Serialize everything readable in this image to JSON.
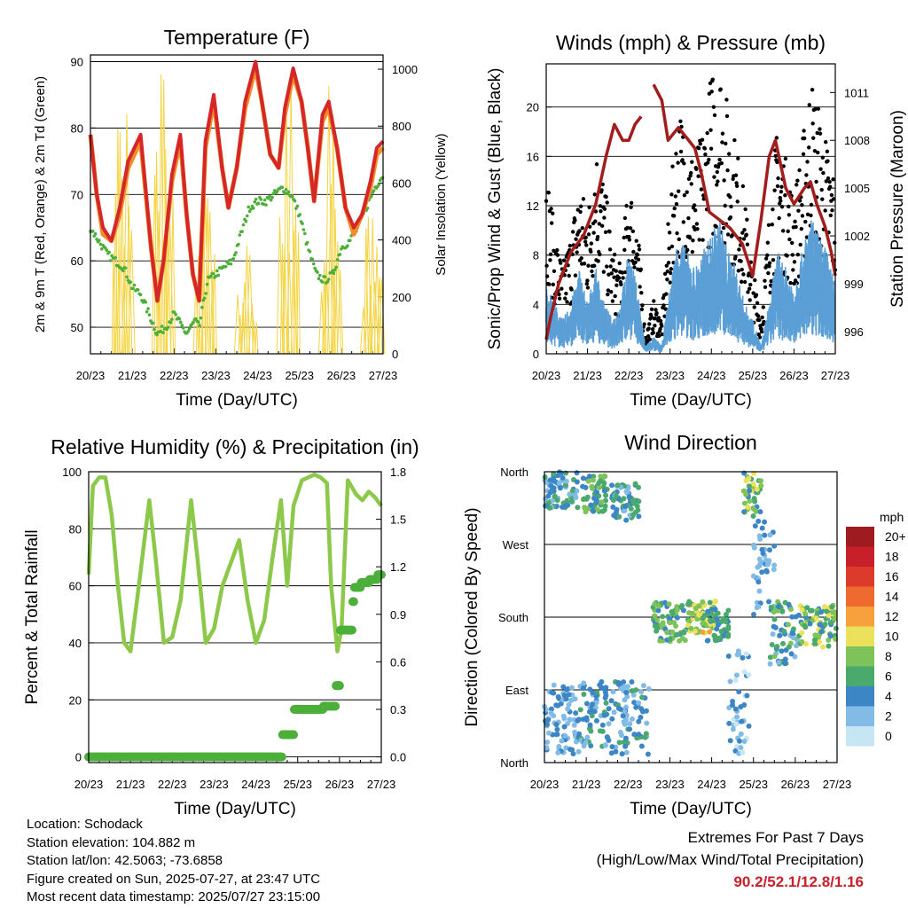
{
  "colors": {
    "temp_red": "#d62728",
    "temp_orange": "#f28c28",
    "dew_green": "#4caf3a",
    "solar_yellow": "#f5d442",
    "wind_blue": "#5b9fd6",
    "gust_black": "#000000",
    "pressure_maroon": "#a31d1d",
    "rh_green": "#8cc94a",
    "precip_green": "#4caf3a",
    "extremes_red": "#c8202a"
  },
  "x_tick_labels": [
    "20/23",
    "21/23",
    "22/23",
    "23/23",
    "24/23",
    "25/23",
    "26/23",
    "27/23"
  ],
  "chart_data": [
    {
      "id": "temperature",
      "type": "line",
      "title": "Temperature (F)",
      "xlabel": "Time (Day/UTC)",
      "ylabel": "2m & 9m T (Red, Orange) & 2m Td (Green)",
      "y2label": "Solar Insolation (Yellow)",
      "ylim": [
        46,
        91
      ],
      "y2lim": [
        0,
        1050
      ],
      "yticks": [
        50,
        60,
        70,
        80,
        90
      ],
      "y2ticks": [
        0,
        200,
        400,
        600,
        800,
        1000
      ],
      "xlim": [
        0,
        7
      ],
      "series": [
        {
          "name": "2m T",
          "color": "#d62728",
          "axis": "left",
          "x": [
            0,
            0.15,
            0.3,
            0.5,
            0.7,
            0.9,
            1.2,
            1.45,
            1.6,
            1.75,
            1.95,
            2.15,
            2.3,
            2.45,
            2.6,
            2.75,
            2.95,
            3.15,
            3.3,
            3.5,
            3.7,
            3.95,
            4.1,
            4.3,
            4.5,
            4.65,
            4.85,
            5.05,
            5.2,
            5.35,
            5.55,
            5.7,
            5.9,
            6.1,
            6.3,
            6.5,
            6.7,
            6.85,
            7
          ],
          "y": [
            79,
            70,
            65,
            63,
            68,
            75,
            79,
            62,
            54,
            60,
            73,
            79,
            67,
            58,
            54,
            78,
            85,
            74,
            68,
            74,
            84,
            90,
            84,
            76,
            74,
            83,
            89,
            84,
            77,
            69,
            82,
            84,
            77,
            68,
            65,
            67,
            72,
            77,
            78
          ]
        },
        {
          "name": "9m T",
          "color": "#f28c28",
          "axis": "left",
          "x": [
            0,
            0.15,
            0.3,
            0.5,
            0.7,
            0.9,
            1.2,
            1.45,
            1.6,
            1.75,
            1.95,
            2.15,
            2.3,
            2.45,
            2.6,
            2.75,
            2.95,
            3.15,
            3.3,
            3.5,
            3.7,
            3.95,
            4.1,
            4.3,
            4.5,
            4.65,
            4.85,
            5.05,
            5.2,
            5.35,
            5.55,
            5.7,
            5.9,
            6.1,
            6.3,
            6.5,
            6.7,
            6.85,
            7
          ],
          "y": [
            79,
            70,
            64,
            63,
            67,
            74,
            78,
            62,
            54,
            60,
            72,
            78,
            67,
            58,
            54,
            77,
            84,
            74,
            68,
            74,
            83,
            89,
            84,
            76,
            74,
            82,
            88,
            84,
            77,
            69,
            81,
            83,
            77,
            68,
            64,
            67,
            71,
            76,
            77
          ]
        },
        {
          "name": "2m Td",
          "color": "#4caf3a",
          "axis": "left",
          "x": [
            0,
            0.2,
            0.4,
            0.6,
            0.8,
            1.0,
            1.2,
            1.4,
            1.6,
            1.8,
            2.0,
            2.3,
            2.5,
            2.6,
            2.8,
            3.0,
            3.2,
            3.4,
            3.6,
            3.8,
            4.0,
            4.2,
            4.4,
            4.6,
            4.8,
            5.0,
            5.2,
            5.4,
            5.6,
            5.8,
            6.0,
            6.2,
            6.4,
            6.6,
            6.8,
            7.0
          ],
          "y": [
            65,
            63,
            61,
            60,
            59,
            56,
            55,
            52,
            49,
            50,
            52,
            49,
            51,
            50,
            57,
            58,
            59,
            60,
            64,
            68,
            69,
            69,
            70,
            71,
            70,
            67,
            62,
            58,
            57,
            58,
            62,
            63,
            65,
            68,
            71,
            73
          ]
        },
        {
          "name": "Solar Insolation",
          "color": "#f5d442",
          "axis": "right",
          "style": "daily-peaks",
          "peaks": [
            {
              "x": 0.75,
              "value": 1040
            },
            {
              "x": 1.74,
              "value": 1050
            },
            {
              "x": 2.74,
              "value": 720
            },
            {
              "x": 3.74,
              "value": 400
            },
            {
              "x": 4.74,
              "value": 980
            },
            {
              "x": 5.74,
              "value": 960
            },
            {
              "x": 6.74,
              "value": 560
            }
          ]
        }
      ]
    },
    {
      "id": "winds",
      "type": "scatter",
      "title": "Winds (mph) & Pressure (mb)",
      "xlabel": "Time (Day/UTC)",
      "ylabel": "Sonic/Prop Wind & Gust (Blue, Black)",
      "y2label": "Station Pressure (Maroon)",
      "ylim": [
        0,
        23.5
      ],
      "y2lim": [
        994.6,
        1012.8
      ],
      "yticks": [
        0,
        4,
        8,
        12,
        16,
        20
      ],
      "y2ticks": [
        996,
        999,
        1002,
        1005,
        1008,
        1011
      ],
      "xlim": [
        0,
        7
      ],
      "series": [
        {
          "name": "Wind",
          "color": "#5b9fd6",
          "x": [
            0,
            0.2,
            0.4,
            0.6,
            0.8,
            1.0,
            1.2,
            1.4,
            1.6,
            1.8,
            2.0,
            2.2,
            2.4,
            2.6,
            2.8,
            3.0,
            3.2,
            3.4,
            3.6,
            3.8,
            4.0,
            4.2,
            4.4,
            4.6,
            4.8,
            5.0,
            5.2,
            5.4,
            5.6,
            5.8,
            6.0,
            6.2,
            6.4,
            6.6,
            6.8,
            7.0
          ],
          "y": [
            4,
            3,
            2,
            3,
            5,
            3,
            5,
            3,
            2,
            3,
            6,
            4,
            0.5,
            1,
            0.5,
            4,
            7,
            6,
            5,
            6,
            7,
            8,
            6,
            5,
            3,
            2,
            0.5,
            3,
            6,
            5,
            4,
            6,
            8,
            7,
            6,
            4
          ]
        },
        {
          "name": "Gust",
          "color": "#000000",
          "x": [
            0,
            0.2,
            0.4,
            0.6,
            0.8,
            1.0,
            1.2,
            1.4,
            1.6,
            1.8,
            2.0,
            2.2,
            2.4,
            2.6,
            2.8,
            3.0,
            3.2,
            3.4,
            3.6,
            3.8,
            4.0,
            4.2,
            4.4,
            4.6,
            4.8,
            5.0,
            5.2,
            5.4,
            5.6,
            5.8,
            6.0,
            6.2,
            6.4,
            6.6,
            6.8,
            7.0
          ],
          "y": [
            11,
            7,
            5,
            7,
            10,
            8,
            12,
            10,
            6,
            5,
            10,
            8,
            1,
            3,
            2,
            9,
            14,
            13,
            11,
            13,
            16,
            17,
            14,
            12,
            9,
            5,
            2,
            8,
            13,
            11,
            9,
            12,
            16,
            14,
            12,
            10
          ]
        },
        {
          "name": "Station Pressure",
          "color": "#a31d1d",
          "axis": "right",
          "x": [
            0,
            0.1,
            0.3,
            0.6,
            0.9,
            1.2,
            1.45,
            1.65,
            1.85,
            2.0,
            2.15,
            2.3,
            2.45,
            2.6,
            2.8,
            2.95,
            3.2,
            3.45,
            3.6,
            3.75,
            3.95,
            4.2,
            4.45,
            4.75,
            5.0,
            5.2,
            5.4,
            5.55,
            5.8,
            6.0,
            6.25,
            6.4,
            6.55,
            6.75,
            6.9,
            7.0
          ],
          "y": [
            995.5,
            996.8,
            999,
            1001,
            1002,
            1004,
            1007,
            1009,
            1008,
            1008,
            1009,
            1009.5,
            null,
            1011.5,
            1010.5,
            1008,
            1008.8,
            1008,
            1007.5,
            1006,
            1003.5,
            1003,
            1002.5,
            1001.5,
            999.5,
            1003,
            1007,
            1008,
            1005,
            1004,
            1005,
            1005.4,
            1004,
            1002.6,
            1001,
            999.5
          ]
        }
      ]
    },
    {
      "id": "humidity",
      "type": "line",
      "title": "Relative Humidity (%) & Precipitation (in)",
      "xlabel": "Time (Day/UTC)",
      "ylabel": "Percent & Total Rainfall",
      "ylim": [
        -2,
        100
      ],
      "y2lim": [
        -0.036,
        1.8
      ],
      "yticks": [
        0,
        20,
        40,
        60,
        80,
        100
      ],
      "y2ticks": [
        0.0,
        0.3,
        0.6,
        0.9,
        1.2,
        1.5,
        1.8
      ],
      "y2tick_labels": [
        "0.0",
        "0.3",
        "0.6",
        "0.9",
        "1.2",
        "1.5",
        "1.8"
      ],
      "xlim": [
        0,
        7
      ],
      "series": [
        {
          "name": "RH",
          "color": "#8cc94a",
          "x": [
            0,
            0.1,
            0.25,
            0.4,
            0.55,
            0.7,
            0.85,
            1.0,
            1.2,
            1.45,
            1.6,
            1.8,
            2.0,
            2.2,
            2.45,
            2.6,
            2.8,
            3.0,
            3.2,
            3.45,
            3.6,
            3.8,
            4.0,
            4.2,
            4.4,
            4.6,
            4.75,
            4.9,
            5.1,
            5.25,
            5.4,
            5.55,
            5.7,
            5.8,
            5.95,
            6.05,
            6.2,
            6.4,
            6.55,
            6.7,
            6.85,
            7.0
          ],
          "y": [
            64,
            95,
            98,
            98,
            85,
            60,
            40,
            37,
            60,
            90,
            70,
            40,
            42,
            55,
            90,
            70,
            40,
            45,
            60,
            70,
            76,
            55,
            40,
            48,
            70,
            90,
            60,
            88,
            97,
            98,
            99,
            98,
            96,
            60,
            37,
            45,
            97,
            92,
            90,
            93,
            91,
            88
          ]
        },
        {
          "name": "Total Precipitation",
          "color": "#4caf3a",
          "axis": "right",
          "style": "step",
          "x": [
            0,
            4.6,
            4.62,
            4.85,
            4.9,
            5.55,
            5.6,
            5.85,
            5.9,
            6.0,
            6.3,
            6.35,
            6.5,
            6.7,
            6.9,
            7.0
          ],
          "y": [
            0,
            0,
            0.14,
            0.14,
            0.3,
            0.3,
            0.32,
            0.32,
            0.45,
            0.8,
            0.98,
            1.07,
            1.1,
            1.12,
            1.15,
            1.16
          ]
        }
      ]
    },
    {
      "id": "direction",
      "type": "scatter",
      "title": "Wind Direction",
      "xlabel": "Time (Day/UTC)",
      "ylabel": "Direction (Colored By Speed)",
      "ylim": [
        0,
        360
      ],
      "y_tick_labels": [
        "North",
        "East",
        "South",
        "West",
        "North"
      ],
      "xlim": [
        0,
        7
      ],
      "legend_title": "mph",
      "legend_labels": [
        "20+",
        "18",
        "16",
        "14",
        "12",
        "10",
        "8",
        "6",
        "4",
        "2",
        "0"
      ],
      "legend_colors": [
        "#9e1b1f",
        "#c8202a",
        "#dc3a2b",
        "#ef6a2e",
        "#f7a13d",
        "#ece15a",
        "#7ec35a",
        "#4aa96c",
        "#3d86c6",
        "#82bbe5",
        "#c6e6f6"
      ],
      "clusters": [
        {
          "x": [
            0.0,
            0.8
          ],
          "dir": [
            315,
            360
          ],
          "speed": [
            2,
            6
          ]
        },
        {
          "x": [
            0.0,
            0.85
          ],
          "dir": [
            10,
            100
          ],
          "speed": [
            1,
            5
          ]
        },
        {
          "x": [
            0.8,
            1.55
          ],
          "dir": [
            20,
            100
          ],
          "speed": [
            2,
            6
          ]
        },
        {
          "x": [
            0.9,
            1.5
          ],
          "dir": [
            310,
            355
          ],
          "speed": [
            3,
            8
          ]
        },
        {
          "x": [
            1.6,
            2.3
          ],
          "dir": [
            300,
            345
          ],
          "speed": [
            2,
            7
          ]
        },
        {
          "x": [
            1.6,
            2.5
          ],
          "dir": [
            10,
            100
          ],
          "speed": [
            1,
            6
          ]
        },
        {
          "x": [
            2.6,
            3.4
          ],
          "dir": [
            150,
            200
          ],
          "speed": [
            3,
            9
          ]
        },
        {
          "x": [
            3.4,
            4.1
          ],
          "dir": [
            160,
            200
          ],
          "speed": [
            5,
            12
          ]
        },
        {
          "x": [
            3.9,
            4.4
          ],
          "dir": [
            150,
            190
          ],
          "speed": [
            3,
            7
          ]
        },
        {
          "x": [
            4.4,
            4.9
          ],
          "dir": [
            10,
            140
          ],
          "speed": [
            0,
            4
          ]
        },
        {
          "x": [
            4.75,
            5.2
          ],
          "dir": [
            305,
            360
          ],
          "speed": [
            3,
            11
          ]
        },
        {
          "x": [
            5.0,
            5.5
          ],
          "dir": [
            180,
            300
          ],
          "speed": [
            1,
            5
          ]
        },
        {
          "x": [
            5.4,
            6.1
          ],
          "dir": [
            120,
            200
          ],
          "speed": [
            2,
            8
          ]
        },
        {
          "x": [
            6.1,
            7.0
          ],
          "dir": [
            140,
            195
          ],
          "speed": [
            3,
            11
          ]
        }
      ]
    }
  ],
  "info": {
    "location": "Location: Schodack",
    "elevation": "Station elevation: 104.882 m",
    "latlon": "Station lat/lon: 42.5063; -73.6858",
    "created": "Figure created on Sun, 2025-07-27, at 23:47 UTC",
    "recent": "Most recent data timestamp: 2025/07/27 23:15:00"
  },
  "extremes": {
    "title": "Extremes For Past 7 Days",
    "subtitle": "(High/Low/Max Wind/Total Precipitation)",
    "values": "90.2/52.1/12.8/1.16"
  }
}
